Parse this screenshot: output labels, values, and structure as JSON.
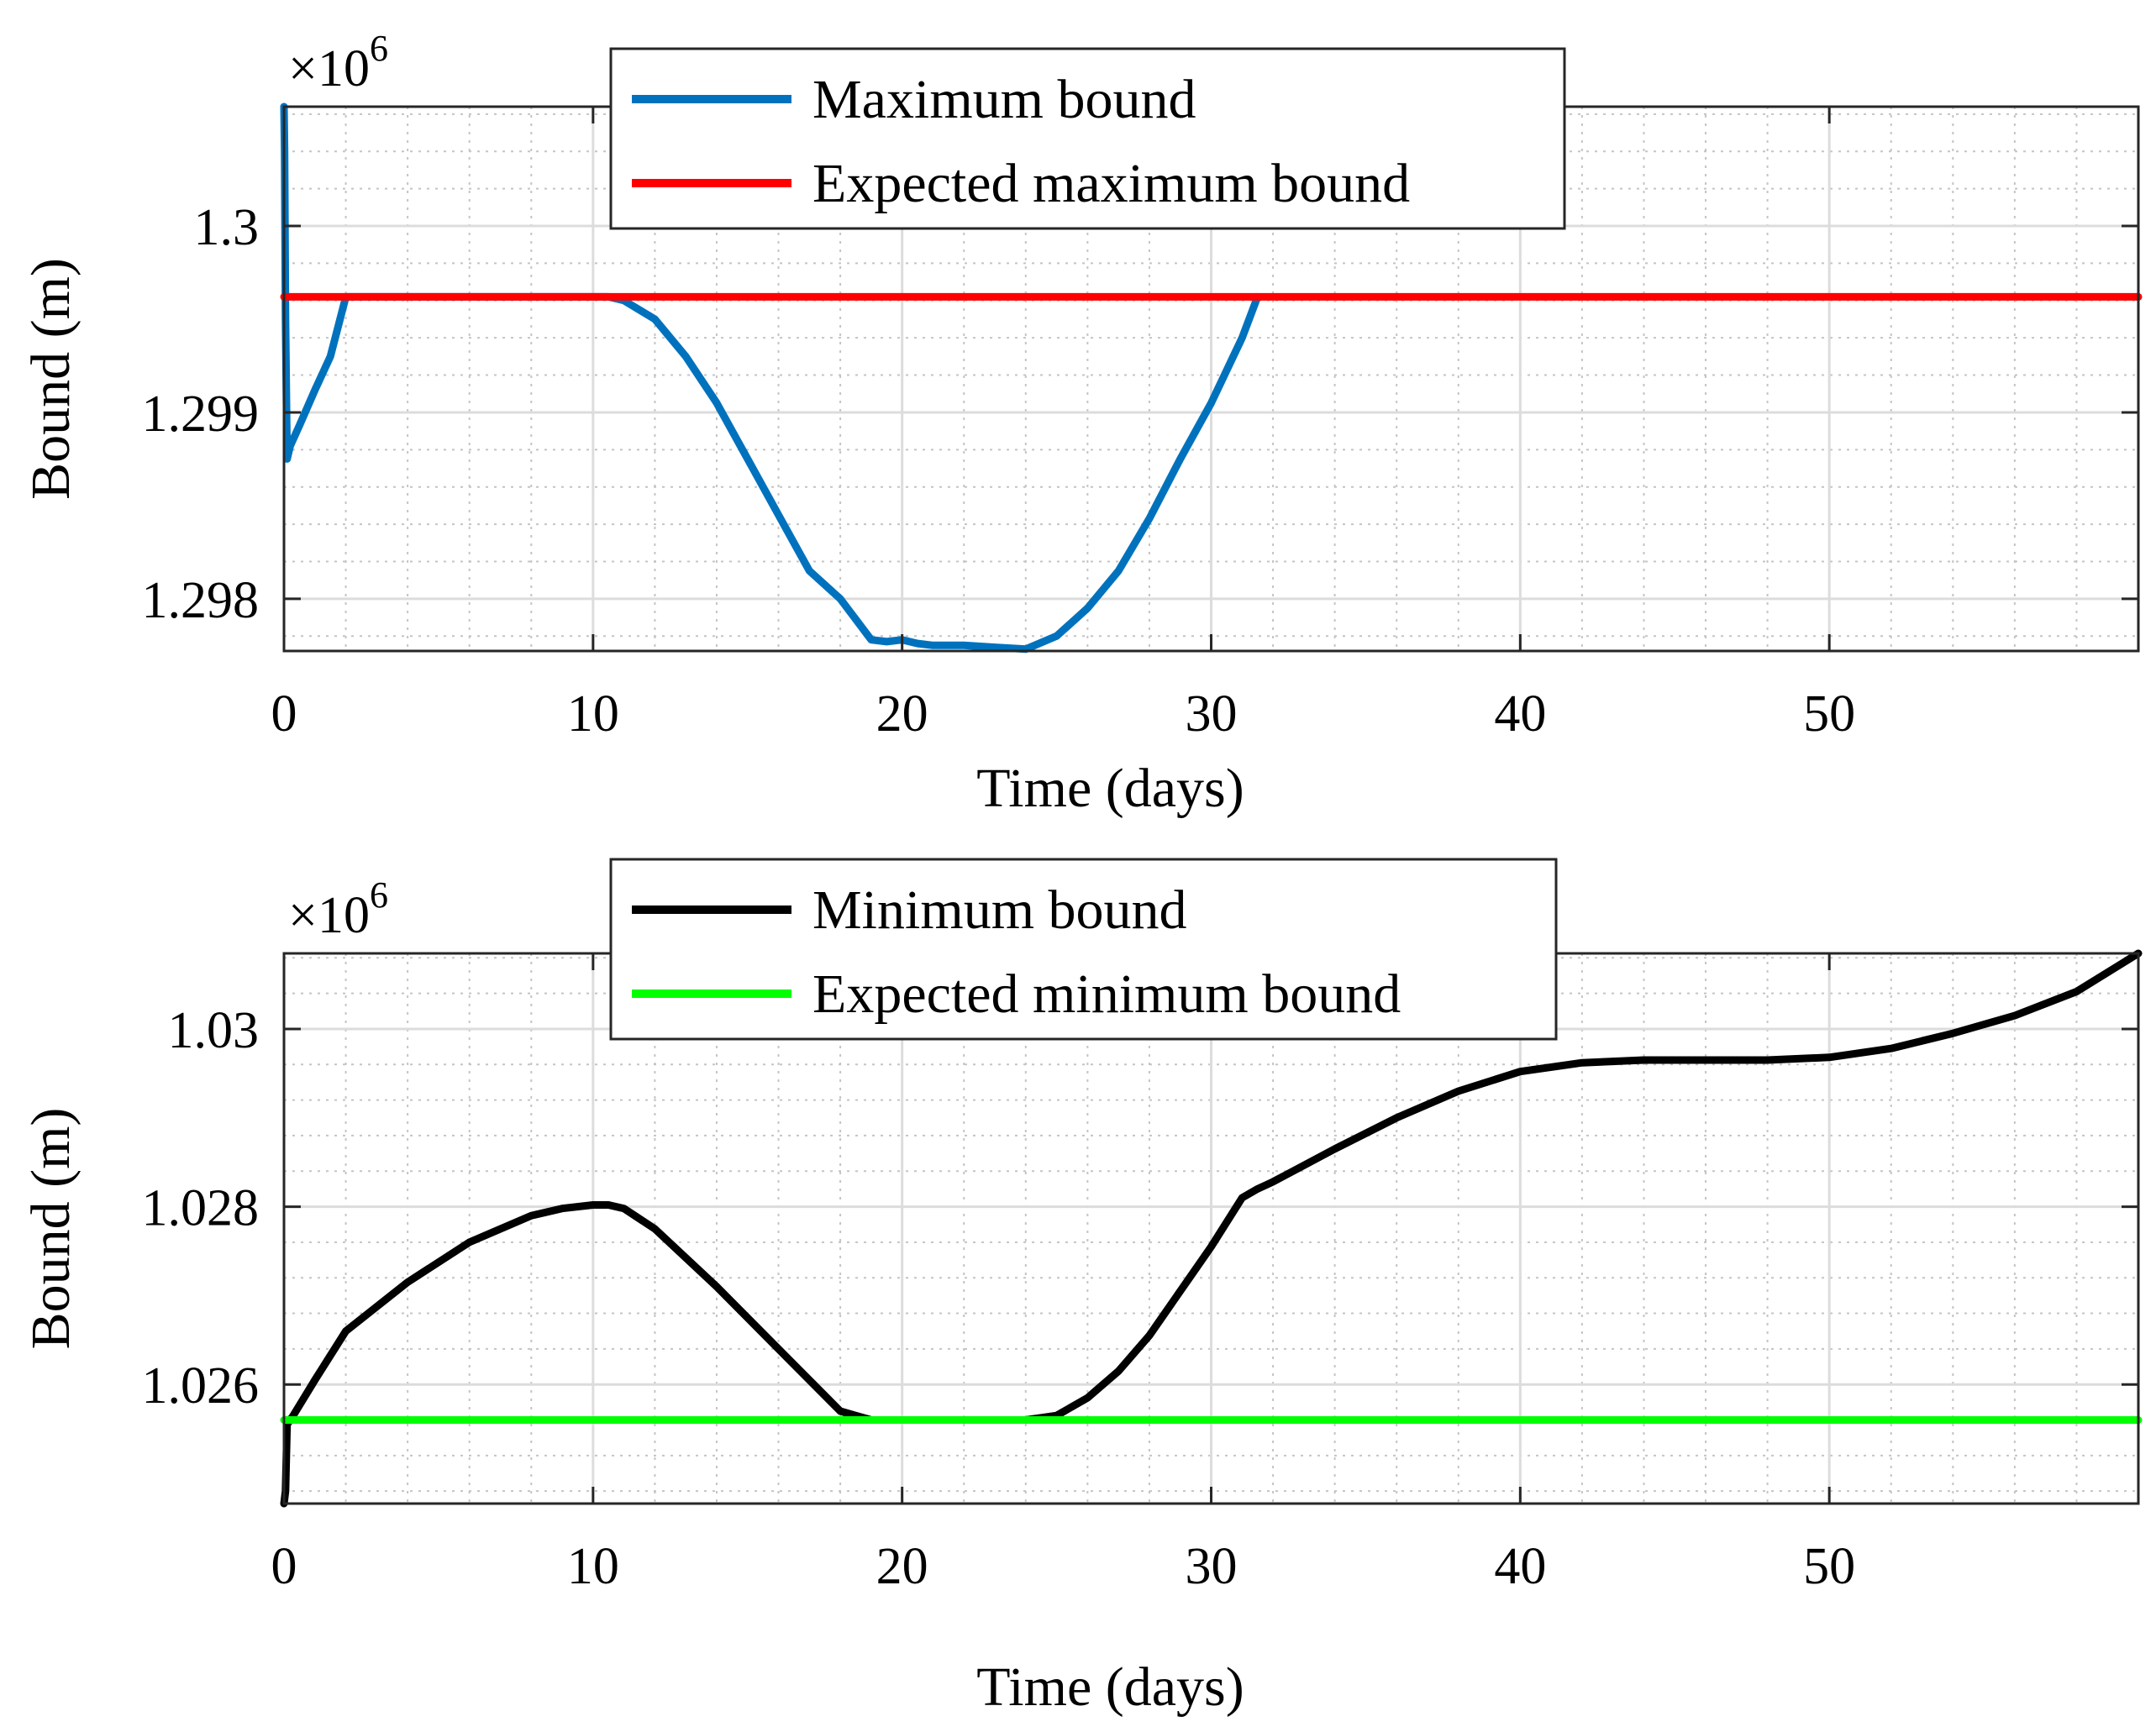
{
  "chart_data": [
    {
      "type": "line",
      "title": "",
      "xlabel": "Time (days)",
      "ylabel": "Bound (m)",
      "y_exponent_label": "×10",
      "y_exponent": "6",
      "xlim": [
        0,
        60
      ],
      "ylim": [
        1.29772,
        1.30064
      ],
      "xticks": [
        0,
        10,
        20,
        30,
        40,
        50
      ],
      "xtick_labels": [
        "0",
        "10",
        "20",
        "30",
        "40",
        "50"
      ],
      "yticks": [
        1.298,
        1.299,
        1.3
      ],
      "ytick_labels": [
        "1.298",
        "1.299",
        "1.3"
      ],
      "grid": true,
      "minor_grid": true,
      "legend_position": "top-center",
      "series": [
        {
          "name": "Maximum bound",
          "color": "#0072BD",
          "x": [
            0,
            0.02,
            0.05,
            0.1,
            0.2,
            0.5,
            1,
            1.5,
            2,
            4,
            6,
            8,
            10,
            10.5,
            11,
            12,
            13,
            14,
            15,
            16,
            17,
            18,
            19,
            19.5,
            20,
            20.5,
            21,
            22,
            23,
            24,
            25,
            26,
            27,
            28,
            29,
            30,
            31,
            31.5
          ],
          "y": [
            1.30064,
            1.3004,
            1.2995,
            1.29875,
            1.29882,
            1.29893,
            1.29912,
            1.2993,
            1.29962,
            1.29962,
            1.29962,
            1.29962,
            1.29962,
            1.29962,
            1.2996,
            1.2995,
            1.2993,
            1.29905,
            1.29875,
            1.29845,
            1.29815,
            1.298,
            1.29778,
            1.29777,
            1.29778,
            1.29776,
            1.29775,
            1.29775,
            1.29774,
            1.29773,
            1.2978,
            1.29795,
            1.29815,
            1.29843,
            1.29875,
            1.29905,
            1.2994,
            1.29962
          ]
        },
        {
          "name": "Expected maximum bound",
          "color": "#FF0000",
          "x": [
            0,
            60
          ],
          "y": [
            1.29962,
            1.29962
          ]
        }
      ]
    },
    {
      "type": "line",
      "title": "",
      "xlabel": "Time (days)",
      "ylabel": "Bound (m)",
      "y_exponent_label": "×10",
      "y_exponent": "6",
      "xlim": [
        0,
        60
      ],
      "ylim": [
        1.02466,
        1.03085
      ],
      "xticks": [
        0,
        10,
        20,
        30,
        40,
        50
      ],
      "xtick_labels": [
        "0",
        "10",
        "20",
        "30",
        "40",
        "50"
      ],
      "yticks": [
        1.026,
        1.028,
        1.03
      ],
      "ytick_labels": [
        "1.026",
        "1.028",
        "1.03"
      ],
      "grid": true,
      "minor_grid": true,
      "legend_position": "top-center",
      "series": [
        {
          "name": "Minimum bound",
          "color": "#000000",
          "x": [
            0,
            0.05,
            0.1,
            0.3,
            1,
            2,
            4,
            6,
            8,
            9,
            10,
            10.5,
            11,
            12,
            14,
            16,
            18,
            19,
            20,
            22,
            24,
            25,
            26,
            27,
            28,
            29,
            30,
            31,
            31.5,
            32,
            34,
            36,
            38,
            40,
            42,
            44,
            46,
            48,
            50,
            52,
            54,
            56,
            58,
            60
          ],
          "y": [
            1.02466,
            1.0248,
            1.02555,
            1.02565,
            1.02605,
            1.0266,
            1.02715,
            1.0276,
            1.0279,
            1.02798,
            1.02802,
            1.02802,
            1.02798,
            1.02775,
            1.0271,
            1.0264,
            1.0257,
            1.0256,
            1.0256,
            1.0256,
            1.0256,
            1.02565,
            1.02585,
            1.02615,
            1.02655,
            1.02705,
            1.02755,
            1.0281,
            1.0282,
            1.02828,
            1.02865,
            1.029,
            1.0293,
            1.02952,
            1.02962,
            1.02965,
            1.02965,
            1.02965,
            1.02968,
            1.02978,
            1.02995,
            1.03015,
            1.03042,
            1.03085
          ]
        },
        {
          "name": "Expected minimum bound",
          "color": "#00FF00",
          "x": [
            0,
            60
          ],
          "y": [
            1.0256,
            1.0256
          ]
        }
      ]
    }
  ]
}
